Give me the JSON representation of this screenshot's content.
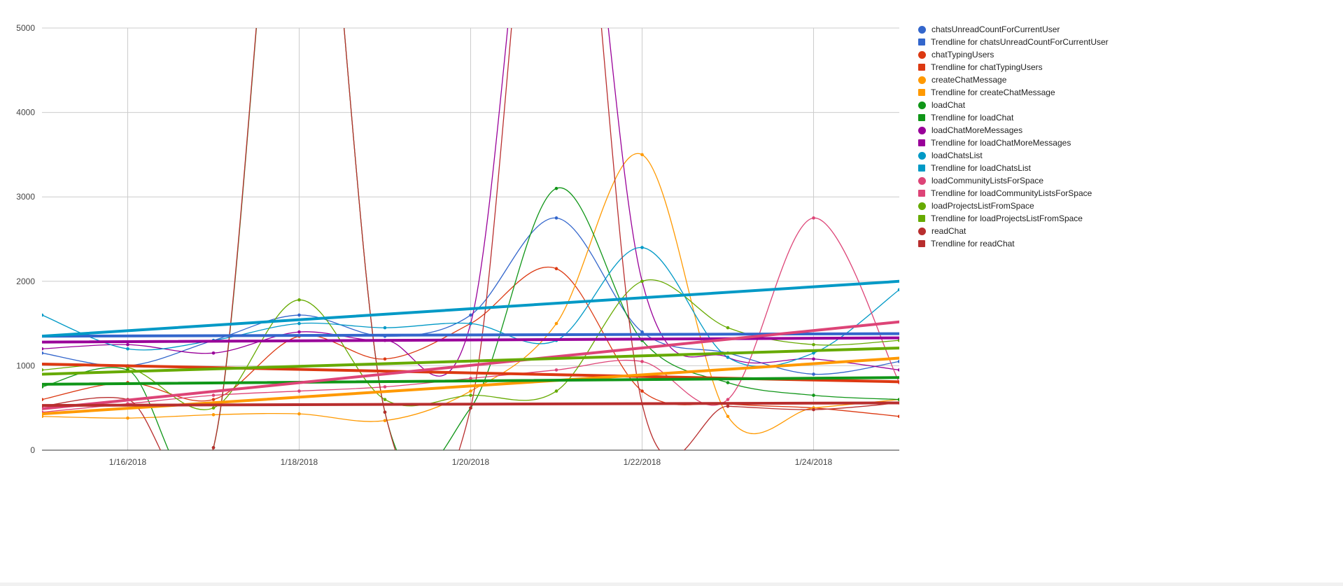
{
  "page": {
    "background": "#ffffff",
    "axis_text_color": "#444444",
    "grid_color": "#cccccc",
    "baseline_color": "#333333",
    "legend_text_color": "#222222"
  },
  "chart_data": {
    "type": "line",
    "title": "",
    "xlabel": "",
    "ylabel": "",
    "grid": true,
    "legend_position": "right",
    "curve": "smooth",
    "ylim": [
      0,
      5000
    ],
    "y_ticks": [
      0,
      1000,
      2000,
      3000,
      4000,
      5000
    ],
    "x": [
      "1/15/2018",
      "1/16/2018",
      "1/17/2018",
      "1/18/2018",
      "1/19/2018",
      "1/20/2018",
      "1/21/2018",
      "1/22/2018",
      "1/23/2018",
      "1/24/2018",
      "1/25/2018"
    ],
    "x_tick_labels": [
      "1/16/2018",
      "1/18/2018",
      "1/20/2018",
      "1/22/2018",
      "1/24/2018"
    ],
    "series": [
      {
        "name": "chatsUnreadCountForCurrentUser",
        "color": "#3366CC",
        "kind": "data",
        "values": [
          1150,
          1000,
          1300,
          1600,
          1350,
          1600,
          2750,
          1400,
          1150,
          900,
          1050
        ]
      },
      {
        "name": "Trendline for chatsUnreadCountForCurrentUser",
        "color": "#3366CC",
        "kind": "trend",
        "values": [
          1350,
          1380
        ]
      },
      {
        "name": "chatTypingUsers",
        "color": "#DC3912",
        "kind": "data",
        "values": [
          600,
          800,
          600,
          1350,
          1080,
          1500,
          2150,
          700,
          550,
          500,
          400
        ]
      },
      {
        "name": "Trendline for chatTypingUsers",
        "color": "#DC3912",
        "kind": "trend",
        "values": [
          1020,
          810
        ]
      },
      {
        "name": "createChatMessage",
        "color": "#FF9900",
        "kind": "data",
        "values": [
          400,
          380,
          420,
          430,
          350,
          700,
          1500,
          3500,
          400,
          500,
          600
        ]
      },
      {
        "name": "Trendline for createChatMessage",
        "color": "#FF9900",
        "kind": "trend",
        "values": [
          430,
          1090
        ]
      },
      {
        "name": "loadChat",
        "color": "#109618",
        "kind": "data",
        "values": [
          750,
          950,
          30,
          9000,
          450,
          500,
          3100,
          1300,
          800,
          650,
          600
        ]
      },
      {
        "name": "Trendline for loadChat",
        "color": "#109618",
        "kind": "trend",
        "values": [
          780,
          860
        ]
      },
      {
        "name": "loadChatMoreMessages",
        "color": "#990099",
        "kind": "data",
        "values": [
          1200,
          1250,
          1150,
          1400,
          1300,
          1500,
          9000,
          2000,
          1100,
          1080,
          950
        ]
      },
      {
        "name": "Trendline for loadChatMoreMessages",
        "color": "#990099",
        "kind": "trend",
        "values": [
          1280,
          1330
        ]
      },
      {
        "name": "loadChatsList",
        "color": "#0099C6",
        "kind": "data",
        "values": [
          1600,
          1200,
          1300,
          1500,
          1450,
          1500,
          1300,
          2400,
          1100,
          1150,
          1900
        ]
      },
      {
        "name": "Trendline for loadChatsList",
        "color": "#0099C6",
        "kind": "trend",
        "values": [
          1350,
          2000
        ]
      },
      {
        "name": "loadCommunityListsForSpace",
        "color": "#DD4477",
        "kind": "data",
        "values": [
          450,
          550,
          650,
          700,
          750,
          850,
          950,
          1050,
          600,
          2750,
          800
        ]
      },
      {
        "name": "Trendline for loadCommunityListsForSpace",
        "color": "#DD4477",
        "kind": "trend",
        "values": [
          490,
          1520
        ]
      },
      {
        "name": "loadProjectsListFromSpace",
        "color": "#66AA00",
        "kind": "data",
        "values": [
          950,
          980,
          500,
          1780,
          600,
          650,
          700,
          2000,
          1450,
          1250,
          1300
        ]
      },
      {
        "name": "Trendline for loadProjectsListFromSpace",
        "color": "#66AA00",
        "kind": "trend",
        "values": [
          900,
          1210
        ]
      },
      {
        "name": "readChat",
        "color": "#B82E2E",
        "kind": "data",
        "values": [
          520,
          600,
          30,
          9000,
          450,
          500,
          9000,
          550,
          520,
          480,
          560
        ]
      },
      {
        "name": "Trendline for readChat",
        "color": "#B82E2E",
        "kind": "trend",
        "values": [
          530,
          560
        ]
      }
    ]
  }
}
